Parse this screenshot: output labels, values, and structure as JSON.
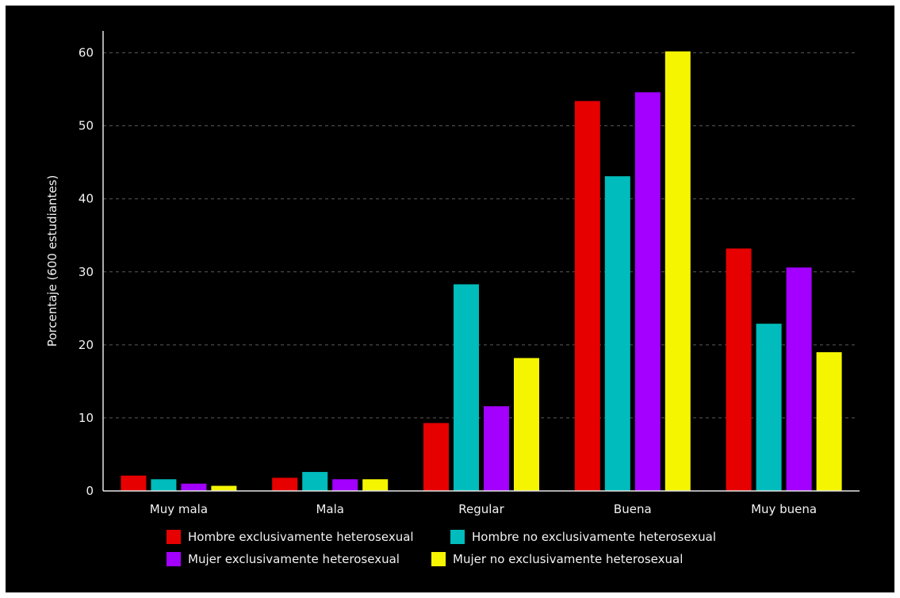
{
  "chart_data": {
    "type": "bar",
    "title": "",
    "xlabel": "",
    "ylabel": "Porcentaje (600 estudiantes)",
    "ylim": [
      0,
      63
    ],
    "yticks": [
      0,
      10,
      20,
      30,
      40,
      50,
      60
    ],
    "grid": "horizontal-dashed",
    "legend_position": "bottom",
    "categories": [
      "Muy mala",
      "Mala",
      "Regular",
      "Buena",
      "Muy buena"
    ],
    "series": [
      {
        "name": "Hombre exclusivamente heterosexual",
        "color": "#e60000",
        "values": [
          2.1,
          1.8,
          9.3,
          53.4,
          33.2
        ]
      },
      {
        "name": "Hombre no exclusivamente heterosexual",
        "color": "#00bcbc",
        "values": [
          1.6,
          2.6,
          28.3,
          43.1,
          22.9
        ]
      },
      {
        "name": "Mujer exclusivamente heterosexual",
        "color": "#a300ff",
        "values": [
          1.0,
          1.6,
          11.6,
          54.6,
          30.6
        ]
      },
      {
        "name": "Mujer no exclusivamente heterosexual",
        "color": "#f5f500",
        "values": [
          0.7,
          1.6,
          18.2,
          60.2,
          19.0
        ]
      }
    ]
  }
}
